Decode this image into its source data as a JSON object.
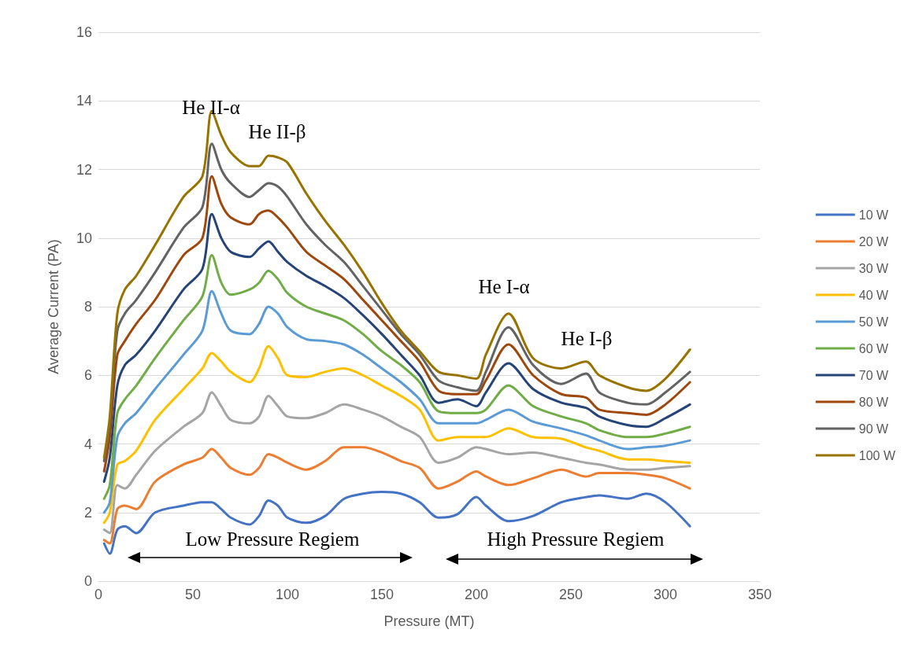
{
  "chart_data": {
    "type": "line",
    "xlabel": "Pressure (MT)",
    "ylabel": "Average Current (PA)",
    "x": [
      3,
      6,
      10,
      14,
      20,
      30,
      45,
      55,
      60,
      65,
      70,
      80,
      85,
      90,
      95,
      100,
      110,
      120,
      130,
      140,
      150,
      160,
      170,
      180,
      190,
      200,
      205,
      217,
      230,
      245,
      258,
      265,
      280,
      290,
      300,
      313
    ],
    "series": [
      {
        "name": "10 W",
        "color": "#4472c4",
        "values": [
          1.1,
          0.8,
          1.5,
          1.6,
          1.4,
          2.0,
          2.2,
          2.3,
          2.3,
          2.1,
          1.85,
          1.65,
          1.9,
          2.35,
          2.2,
          1.85,
          1.7,
          1.9,
          2.4,
          2.55,
          2.6,
          2.55,
          2.3,
          1.85,
          1.95,
          2.45,
          2.2,
          1.75,
          1.9,
          2.3,
          2.45,
          2.5,
          2.4,
          2.55,
          2.3,
          1.6
        ]
      },
      {
        "name": "20 W",
        "color": "#ed7d31",
        "values": [
          1.2,
          1.1,
          2.1,
          2.2,
          2.1,
          2.9,
          3.4,
          3.6,
          3.85,
          3.6,
          3.3,
          3.1,
          3.3,
          3.7,
          3.6,
          3.45,
          3.25,
          3.5,
          3.9,
          3.9,
          3.75,
          3.5,
          3.3,
          2.7,
          2.9,
          3.2,
          3.05,
          2.8,
          3.0,
          3.25,
          3.05,
          3.15,
          3.15,
          3.1,
          3.0,
          2.7
        ]
      },
      {
        "name": "30 W",
        "color": "#a5a5a5",
        "values": [
          1.5,
          1.4,
          2.8,
          2.7,
          3.1,
          3.8,
          4.5,
          4.9,
          5.5,
          5.1,
          4.7,
          4.6,
          4.8,
          5.4,
          5.1,
          4.8,
          4.75,
          4.9,
          5.15,
          5.0,
          4.8,
          4.5,
          4.2,
          3.45,
          3.6,
          3.9,
          3.85,
          3.7,
          3.75,
          3.6,
          3.45,
          3.4,
          3.25,
          3.25,
          3.3,
          3.35
        ]
      },
      {
        "name": "40 W",
        "color": "#ffc000",
        "values": [
          1.7,
          2.0,
          3.4,
          3.5,
          3.8,
          4.7,
          5.6,
          6.2,
          6.65,
          6.4,
          6.1,
          5.8,
          6.2,
          6.85,
          6.5,
          6.0,
          5.95,
          6.1,
          6.2,
          6.0,
          5.7,
          5.4,
          5.0,
          4.1,
          4.2,
          4.2,
          4.2,
          4.45,
          4.2,
          4.15,
          3.9,
          3.8,
          3.55,
          3.55,
          3.5,
          3.45
        ]
      },
      {
        "name": "50 W",
        "color": "#5b9bd5",
        "values": [
          2.0,
          2.3,
          4.2,
          4.6,
          4.9,
          5.6,
          6.6,
          7.3,
          8.45,
          7.8,
          7.3,
          7.2,
          7.5,
          8.0,
          7.8,
          7.4,
          7.05,
          7.0,
          6.9,
          6.6,
          6.2,
          5.8,
          5.3,
          4.6,
          4.6,
          4.6,
          4.7,
          5.0,
          4.65,
          4.45,
          4.25,
          4.1,
          3.85,
          3.9,
          3.95,
          4.1
        ]
      },
      {
        "name": "60 W",
        "color": "#70ad47",
        "values": [
          2.4,
          2.8,
          4.9,
          5.3,
          5.7,
          6.5,
          7.6,
          8.3,
          9.5,
          8.7,
          8.35,
          8.5,
          8.7,
          9.05,
          8.8,
          8.4,
          8.0,
          7.8,
          7.6,
          7.2,
          6.7,
          6.3,
          5.8,
          4.95,
          4.9,
          4.9,
          5.0,
          5.7,
          5.1,
          4.8,
          4.6,
          4.4,
          4.2,
          4.2,
          4.3,
          4.5
        ]
      },
      {
        "name": "70 W",
        "color": "#264478",
        "values": [
          2.9,
          3.6,
          5.7,
          6.3,
          6.6,
          7.3,
          8.5,
          9.1,
          10.7,
          10.0,
          9.6,
          9.45,
          9.7,
          9.9,
          9.6,
          9.3,
          8.9,
          8.6,
          8.25,
          7.75,
          7.2,
          6.6,
          6.0,
          5.2,
          5.3,
          5.1,
          5.5,
          6.35,
          5.6,
          5.2,
          5.05,
          4.8,
          4.55,
          4.5,
          4.75,
          5.15
        ]
      },
      {
        "name": "80 W",
        "color": "#9e480e",
        "values": [
          3.2,
          4.2,
          6.6,
          7.0,
          7.5,
          8.2,
          9.5,
          10.0,
          11.8,
          11.0,
          10.6,
          10.4,
          10.7,
          10.8,
          10.6,
          10.3,
          9.6,
          9.2,
          8.8,
          8.2,
          7.6,
          7.0,
          6.4,
          5.55,
          5.45,
          5.45,
          5.85,
          6.9,
          6.0,
          5.45,
          5.35,
          5.0,
          4.9,
          4.85,
          5.15,
          5.8
        ]
      },
      {
        "name": "90 W",
        "color": "#636363",
        "values": [
          3.5,
          4.6,
          7.3,
          7.8,
          8.2,
          9.0,
          10.3,
          10.9,
          12.75,
          12.0,
          11.6,
          11.2,
          11.4,
          11.6,
          11.5,
          11.2,
          10.4,
          9.8,
          9.3,
          8.6,
          7.9,
          7.2,
          6.6,
          5.85,
          5.65,
          5.55,
          6.1,
          7.4,
          6.3,
          5.75,
          6.05,
          5.5,
          5.2,
          5.15,
          5.5,
          6.1
        ]
      },
      {
        "name": "100 W",
        "color": "#997300",
        "values": [
          3.6,
          4.8,
          7.8,
          8.5,
          8.9,
          9.8,
          11.2,
          11.8,
          13.7,
          13.0,
          12.5,
          12.1,
          12.1,
          12.4,
          12.35,
          12.2,
          11.3,
          10.5,
          9.8,
          9.0,
          8.1,
          7.3,
          6.7,
          6.1,
          6.0,
          5.9,
          6.6,
          7.8,
          6.5,
          6.2,
          6.4,
          6.0,
          5.65,
          5.55,
          5.9,
          6.75
        ]
      }
    ],
    "xlim": [
      0,
      350
    ],
    "xticks": [
      0,
      50,
      100,
      150,
      200,
      250,
      300,
      350
    ],
    "ylim": [
      0,
      16
    ],
    "yticks": [
      0,
      2,
      4,
      6,
      8,
      10,
      12,
      14,
      16
    ],
    "grid": "y",
    "legend": "right",
    "marker": "none",
    "line_style": "solid",
    "annotations": [
      "He II-α",
      "He II-β",
      "He I-α",
      "He I-β",
      "Low Pressure Regiem",
      "High Pressure Regiem"
    ]
  }
}
